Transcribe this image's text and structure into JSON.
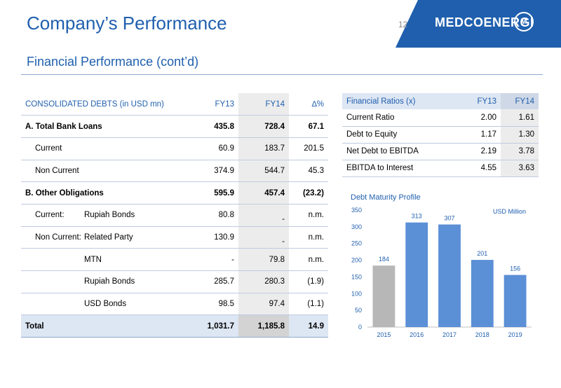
{
  "header": {
    "title": "Company’s Performance",
    "page_number": "12",
    "logo_text": "MEDCOENERGI",
    "logo_mark": "M",
    "accent_color": "#1f5fae"
  },
  "subtitle": "Financial Performance (cont’d)",
  "debt_table": {
    "headers": [
      "CONSOLIDATED DEBTS (in USD mn)",
      "FY13",
      "FY14",
      "∆%"
    ],
    "rows": [
      {
        "label": "A. Total Bank Loans",
        "fy13": "435.8",
        "fy14": "728.4",
        "chg": "67.1"
      },
      {
        "label": "Current",
        "fy13": "60.9",
        "fy14": "183.7",
        "chg": "201.5"
      },
      {
        "label": "Non Current",
        "fy13": "374.9",
        "fy14": "544.7",
        "chg": "45.3"
      },
      {
        "label": "B. Other Obligations",
        "fy13": "595.9",
        "fy14": "457.4",
        "chg": "(23.2)"
      },
      {
        "label": "Current:",
        "sublabel": "Rupiah Bonds",
        "fy13": "80.8",
        "fy14": "-",
        "chg": "n.m."
      },
      {
        "label": "Non Current:",
        "sublabel": "Related Party",
        "fy13": "130.9",
        "fy14": "-",
        "chg": "n.m."
      },
      {
        "label": "MTN",
        "fy13": "-",
        "fy14": "79.8",
        "chg": "n.m."
      },
      {
        "label": "Rupiah Bonds",
        "fy13": "285.7",
        "fy14": "280.3",
        "chg": "(1.9)"
      },
      {
        "label": "USD Bonds",
        "fy13": "98.5",
        "fy14": "97.4",
        "chg": "(1.1)"
      },
      {
        "label": "Total",
        "fy13": "1,031.7",
        "fy14": "1,185.8",
        "chg": "14.9"
      }
    ]
  },
  "ratio_table": {
    "headers": [
      "Financial Ratios (x)",
      "FY13",
      "FY14"
    ],
    "rows": [
      {
        "label": "Current Ratio",
        "fy13": "2.00",
        "fy14": "1.61"
      },
      {
        "label": "Debt to Equity",
        "fy13": "1.17",
        "fy14": "1.30"
      },
      {
        "label": "Net Debt to EBITDA",
        "fy13": "2.19",
        "fy14": "3.78"
      },
      {
        "label": "EBITDA to Interest",
        "fy13": "4.55",
        "fy14": "3.63"
      }
    ]
  },
  "chart_data": {
    "type": "bar",
    "title": "Debt Maturity Profile",
    "unit_label": "USD Million",
    "categories": [
      "2015",
      "2016",
      "2017",
      "2018",
      "2019"
    ],
    "values": [
      184,
      313,
      307,
      201,
      156
    ],
    "bar_colors": [
      "#b7b7b7",
      "#5b8fd6",
      "#5b8fd6",
      "#5b8fd6",
      "#5b8fd6"
    ],
    "ylim": [
      0,
      350
    ],
    "yticks": [
      0,
      50,
      100,
      150,
      200,
      250,
      300,
      350
    ],
    "grid": false,
    "legend": "none"
  }
}
